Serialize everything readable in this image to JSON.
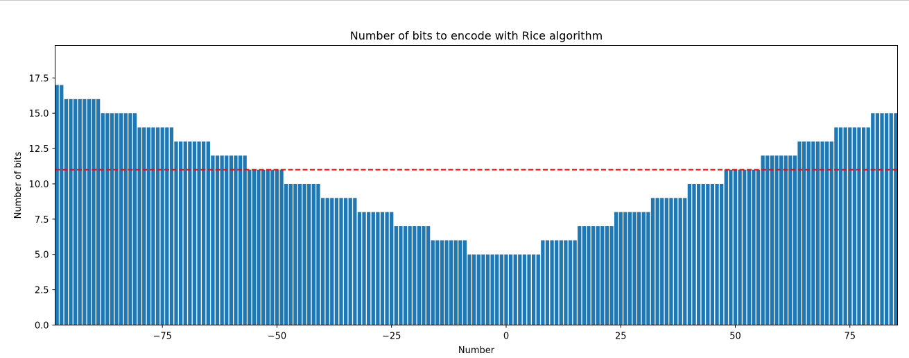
{
  "chart_data": {
    "type": "bar",
    "title": "Number of bits to encode with Rice algorithm",
    "xlabel": "Number",
    "ylabel": "Number of bits",
    "x_start": -98,
    "x_end": 85,
    "step_width": 8,
    "center_value": 5,
    "xlim": [
      -98.4,
      85.4
    ],
    "ylim": [
      0,
      19.8
    ],
    "bar_color": "#1f77b4",
    "reference_line": {
      "y": 11,
      "color": "#ff0000",
      "style": "dashed"
    },
    "xticks": [
      -75,
      -50,
      -25,
      0,
      25,
      50,
      75
    ],
    "xtick_labels": [
      "−75",
      "−50",
      "−25",
      "0",
      "25",
      "50",
      "75"
    ],
    "yticks": [
      0,
      2.5,
      5,
      7.5,
      10,
      12.5,
      15,
      17.5
    ],
    "ytick_labels": [
      "0.0",
      "2.5",
      "5.0",
      "7.5",
      "10.0",
      "12.5",
      "15.0",
      "17.5"
    ],
    "grid": false
  }
}
